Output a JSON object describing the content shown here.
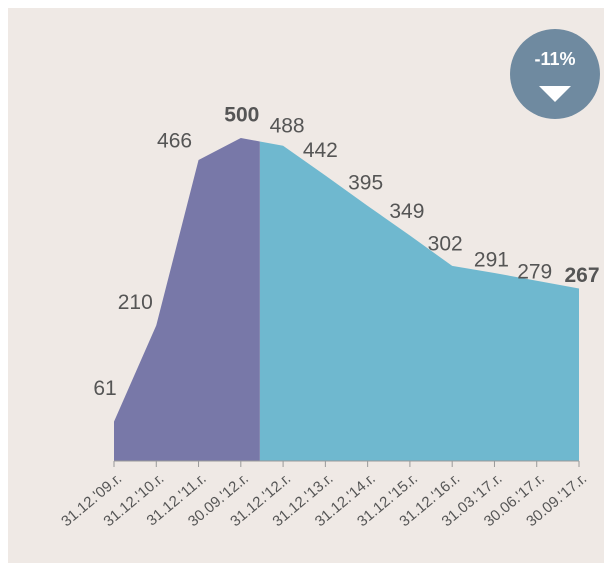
{
  "chart_data": {
    "type": "area",
    "categories": [
      "31.12.'09.г.",
      "31.12.'10.г.",
      "31.12.'11.г.",
      "30.09.'12.г.",
      "31.12.'12.г.",
      "31.12.'13.г.",
      "31.12.'14.г.",
      "31.12.'15.г.",
      "31.12.'16.г.",
      "31.03.'17.г.",
      "30.06.'17.г.",
      "30.09.'17.г."
    ],
    "values": [
      61,
      210,
      466,
      500,
      488,
      442,
      395,
      349,
      302,
      291,
      279,
      267
    ],
    "colors": [
      "#7878a8",
      "#6fb8cf"
    ],
    "highlighted": [
      3,
      11
    ],
    "badge": "-11%"
  }
}
